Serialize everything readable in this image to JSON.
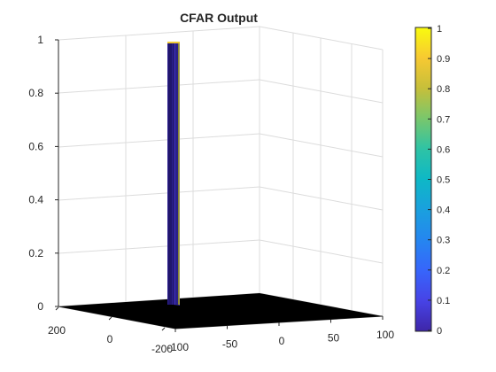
{
  "chart_data": {
    "type": "surface",
    "title": "CFAR Output",
    "z_ticks": [
      "0",
      "0.2",
      "0.4",
      "0.6",
      "0.8",
      "1"
    ],
    "x_ticks": [
      "-100",
      "-50",
      "0",
      "50",
      "100"
    ],
    "y_ticks": [
      "200",
      "0",
      "-200"
    ],
    "colorbar_ticks": [
      "0",
      "0.1",
      "0.2",
      "0.3",
      "0.4",
      "0.5",
      "0.6",
      "0.7",
      "0.8",
      "0.9",
      "1"
    ],
    "zlim": [
      0,
      1
    ],
    "colormap": "parula",
    "grid": true,
    "surface_color": "#000000",
    "peak": {
      "value": 1,
      "base_value": 0
    }
  }
}
